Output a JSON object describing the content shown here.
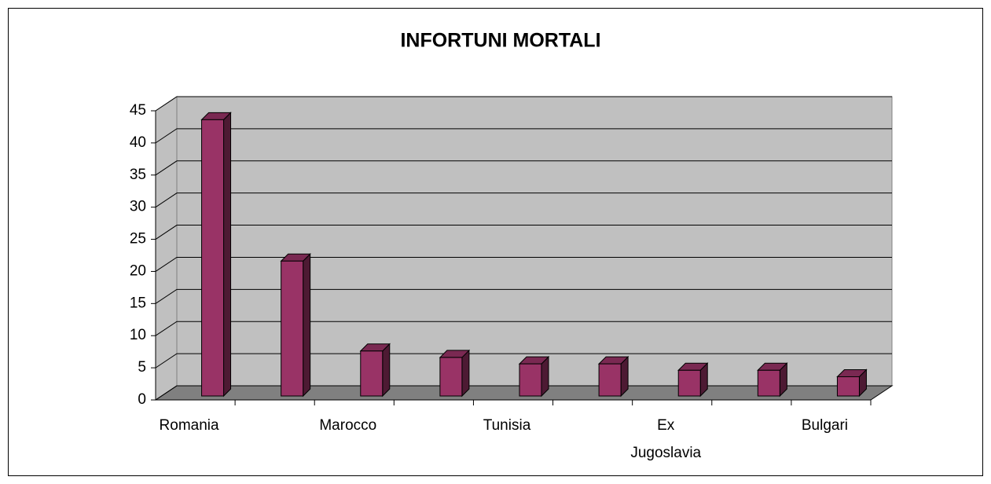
{
  "chart_data": {
    "type": "bar3d",
    "title": "INFORTUNI MORTALI",
    "categories": [
      "Romania",
      null,
      "Marocco",
      null,
      "Tunisia",
      null,
      "Ex Jugoslavia",
      null,
      "Bulgari"
    ],
    "values": [
      43,
      21,
      7,
      6,
      5,
      5,
      4,
      4,
      3
    ],
    "color": "#993366",
    "ylim": [
      0,
      45
    ],
    "yticks": [
      0,
      5,
      10,
      15,
      20,
      25,
      30,
      35,
      40,
      45
    ],
    "grid": true
  }
}
